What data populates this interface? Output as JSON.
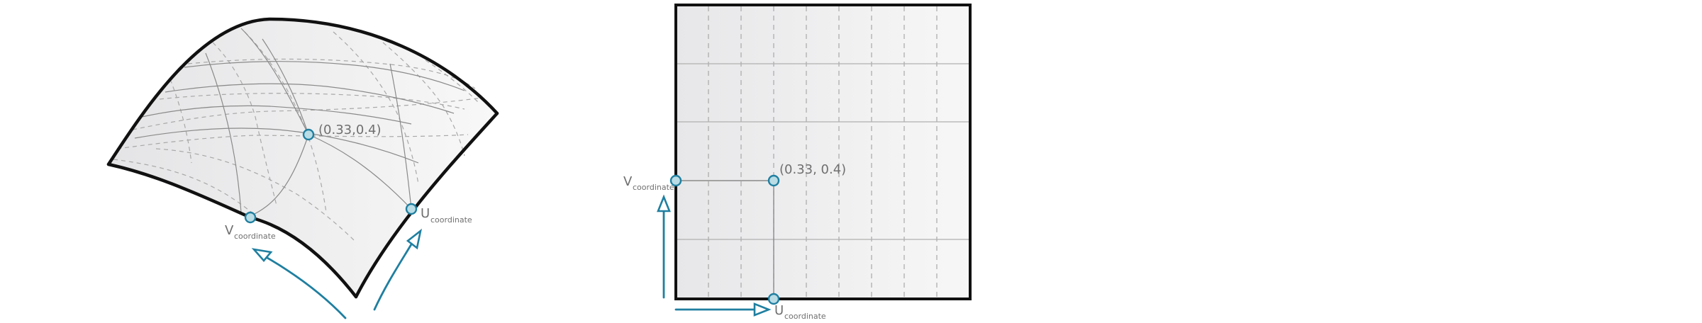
{
  "colors": {
    "accent": "#1f7fa0",
    "point_fill": "#b9dce5",
    "surface_fill_light": "#f6f6f6",
    "surface_fill_dark": "#e7e7e9",
    "outline": "#111111",
    "grid": "#a8a8a8"
  },
  "surface_view": {
    "point_label": "(0.33,0.4)",
    "v_axis": {
      "main": "V",
      "sub": "coordinate"
    },
    "u_axis": {
      "main": "U",
      "sub": "coordinate"
    }
  },
  "param_view": {
    "point_label": "(0.33, 0.4)",
    "v_axis": {
      "main": "V",
      "sub": "coordinate"
    },
    "u_axis": {
      "main": "U",
      "sub": "coordinate"
    }
  }
}
